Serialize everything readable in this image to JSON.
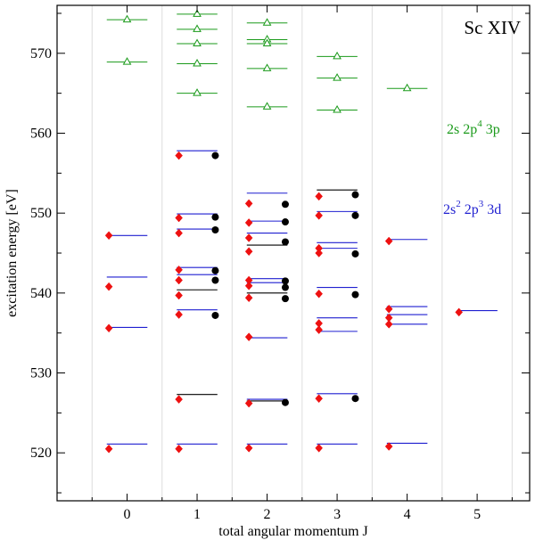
{
  "chart_data": {
    "type": "scatter",
    "title": "Sc XIV",
    "xlabel": "total angular momentum J",
    "ylabel": "excitation energy  [eV]",
    "xlim": [
      -1,
      5.75
    ],
    "ylim": [
      514,
      576
    ],
    "x_ticks": [
      0,
      1,
      2,
      3,
      4,
      5
    ],
    "y_ticks": [
      520,
      530,
      540,
      550,
      560,
      570
    ],
    "grid_lines_x": [
      -0.5,
      0.5,
      1.5,
      2.5,
      3.5,
      4.5,
      5.5
    ],
    "colors": {
      "green": "#1a9a1a",
      "blue": "#1f1fd0",
      "red": "#ee1111",
      "black": "#000000",
      "grid": "#dddddd"
    },
    "legend": [
      {
        "label": "2s 2p4 3p",
        "main": "2s 2p",
        "sup": "4",
        "tail": " 3p",
        "color": "green",
        "position": "right, y≈561"
      },
      {
        "label": "2s2 2p3 3d",
        "main": "2s",
        "sup1": "2",
        "mid": " 2p",
        "sup2": "3",
        "tail": " 3d",
        "color": "blue",
        "position": "right, y≈551"
      }
    ],
    "series": [
      {
        "name": "2s 2p4 3p levels",
        "marker": "triangle-line",
        "color": "green",
        "points": [
          {
            "J": 0,
            "E": 574.2
          },
          {
            "J": 0,
            "E": 568.9
          },
          {
            "J": 1,
            "E": 574.9
          },
          {
            "J": 1,
            "E": 573.0
          },
          {
            "J": 1,
            "E": 571.2
          },
          {
            "J": 1,
            "E": 568.7
          },
          {
            "J": 1,
            "E": 565.0
          },
          {
            "J": 2,
            "E": 573.8
          },
          {
            "J": 2,
            "E": 571.7
          },
          {
            "J": 2,
            "E": 571.2
          },
          {
            "J": 2,
            "E": 568.1
          },
          {
            "J": 2,
            "E": 563.3
          },
          {
            "J": 3,
            "E": 569.6
          },
          {
            "J": 3,
            "E": 566.9
          },
          {
            "J": 3,
            "E": 562.9
          },
          {
            "J": 4,
            "E": 565.6
          }
        ]
      },
      {
        "name": "2s2 2p3 3d levels (blue)",
        "marker": "line",
        "color": "blue",
        "points": [
          {
            "J": 0,
            "E": 547.2
          },
          {
            "J": 0,
            "E": 542.0
          },
          {
            "J": 0,
            "E": 535.7
          },
          {
            "J": 0,
            "E": 521.1
          },
          {
            "J": 1,
            "E": 557.8
          },
          {
            "J": 1,
            "E": 549.9
          },
          {
            "J": 1,
            "E": 548.0
          },
          {
            "J": 1,
            "E": 543.2
          },
          {
            "J": 1,
            "E": 542.3
          },
          {
            "J": 1,
            "E": 537.9
          },
          {
            "J": 1,
            "E": 521.1
          },
          {
            "J": 2,
            "E": 552.5
          },
          {
            "J": 2,
            "E": 549.0
          },
          {
            "J": 2,
            "E": 547.5
          },
          {
            "J": 2,
            "E": 541.8
          },
          {
            "J": 2,
            "E": 541.3
          },
          {
            "J": 2,
            "E": 534.4
          },
          {
            "J": 2,
            "E": 526.7
          },
          {
            "J": 2,
            "E": 521.1
          },
          {
            "J": 3,
            "E": 550.2
          },
          {
            "J": 3,
            "E": 546.3
          },
          {
            "J": 3,
            "E": 545.6
          },
          {
            "J": 3,
            "E": 540.7
          },
          {
            "J": 3,
            "E": 536.9
          },
          {
            "J": 3,
            "E": 535.2
          },
          {
            "J": 3,
            "E": 527.4
          },
          {
            "J": 3,
            "E": 521.1
          },
          {
            "J": 4,
            "E": 546.7
          },
          {
            "J": 4,
            "E": 538.3
          },
          {
            "J": 4,
            "E": 537.3
          },
          {
            "J": 4,
            "E": 536.1
          },
          {
            "J": 4,
            "E": 521.2
          },
          {
            "J": 5,
            "E": 537.8
          }
        ]
      },
      {
        "name": "levels (black lines)",
        "marker": "line",
        "color": "black",
        "points": [
          {
            "J": 1,
            "E": 527.3
          },
          {
            "J": 1,
            "E": 540.4
          },
          {
            "J": 2,
            "E": 546.0
          },
          {
            "J": 2,
            "E": 540.0
          },
          {
            "J": 2,
            "E": 526.5
          },
          {
            "J": 3,
            "E": 552.9
          }
        ]
      },
      {
        "name": "red diamonds",
        "marker": "diamond",
        "color": "red",
        "points": [
          {
            "J": 0,
            "E": 547.2
          },
          {
            "J": 0,
            "E": 540.8
          },
          {
            "J": 0,
            "E": 535.6
          },
          {
            "J": 0,
            "E": 520.5
          },
          {
            "J": 1,
            "E": 557.2
          },
          {
            "J": 1,
            "E": 549.4
          },
          {
            "J": 1,
            "E": 547.5
          },
          {
            "J": 1,
            "E": 542.9
          },
          {
            "J": 1,
            "E": 541.6
          },
          {
            "J": 1,
            "E": 539.7
          },
          {
            "J": 1,
            "E": 537.3
          },
          {
            "J": 1,
            "E": 526.7
          },
          {
            "J": 1,
            "E": 520.5
          },
          {
            "J": 2,
            "E": 551.2
          },
          {
            "J": 2,
            "E": 548.8
          },
          {
            "J": 2,
            "E": 546.9
          },
          {
            "J": 2,
            "E": 545.2
          },
          {
            "J": 2,
            "E": 541.6
          },
          {
            "J": 2,
            "E": 540.9
          },
          {
            "J": 2,
            "E": 539.4
          },
          {
            "J": 2,
            "E": 534.5
          },
          {
            "J": 2,
            "E": 526.2
          },
          {
            "J": 2,
            "E": 520.6
          },
          {
            "J": 3,
            "E": 552.1
          },
          {
            "J": 3,
            "E": 549.7
          },
          {
            "J": 3,
            "E": 545.6
          },
          {
            "J": 3,
            "E": 545.0
          },
          {
            "J": 3,
            "E": 539.9
          },
          {
            "J": 3,
            "E": 536.2
          },
          {
            "J": 3,
            "E": 535.4
          },
          {
            "J": 3,
            "E": 526.8
          },
          {
            "J": 3,
            "E": 520.6
          },
          {
            "J": 4,
            "E": 546.5
          },
          {
            "J": 4,
            "E": 538.0
          },
          {
            "J": 4,
            "E": 536.9
          },
          {
            "J": 4,
            "E": 536.1
          },
          {
            "J": 4,
            "E": 520.8
          },
          {
            "J": 5,
            "E": 537.6
          }
        ]
      },
      {
        "name": "black dots",
        "marker": "circle",
        "color": "black",
        "points": [
          {
            "J": 1,
            "E": 557.2
          },
          {
            "J": 1,
            "E": 549.5
          },
          {
            "J": 1,
            "E": 547.9
          },
          {
            "J": 1,
            "E": 542.8
          },
          {
            "J": 1,
            "E": 541.6
          },
          {
            "J": 1,
            "E": 537.2
          },
          {
            "J": 2,
            "E": 551.1
          },
          {
            "J": 2,
            "E": 548.9
          },
          {
            "J": 2,
            "E": 546.4
          },
          {
            "J": 2,
            "E": 541.5
          },
          {
            "J": 2,
            "E": 540.7
          },
          {
            "J": 2,
            "E": 539.3
          },
          {
            "J": 2,
            "E": 526.3
          },
          {
            "J": 3,
            "E": 552.3
          },
          {
            "J": 3,
            "E": 549.7
          },
          {
            "J": 3,
            "E": 544.9
          },
          {
            "J": 3,
            "E": 539.8
          },
          {
            "J": 3,
            "E": 526.8
          }
        ]
      }
    ]
  }
}
